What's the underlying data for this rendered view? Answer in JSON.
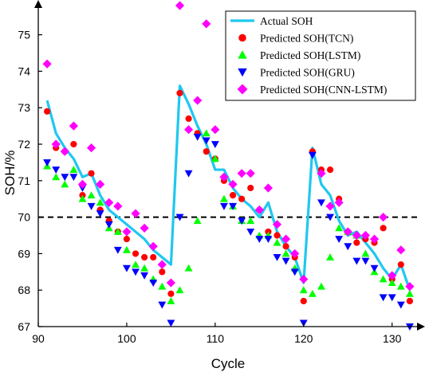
{
  "chart_data": {
    "type": "line",
    "title": "",
    "xlabel": "Cycle",
    "ylabel": "SOH/%",
    "xlim": [
      90,
      133
    ],
    "ylim": [
      67,
      75.8
    ],
    "xticks": [
      90,
      100,
      110,
      120,
      130
    ],
    "yticks": [
      67,
      68,
      69,
      70,
      71,
      72,
      73,
      74,
      75
    ],
    "xtick_labels": [
      "90",
      "100",
      "110",
      "120",
      "130"
    ],
    "ytick_labels": [
      "67",
      "68",
      "69",
      "70",
      "71",
      "72",
      "73",
      "74",
      "75"
    ],
    "legend_position": "top-right",
    "threshold": {
      "y": 70,
      "style": "dashed",
      "color": "#000000"
    },
    "series": [
      {
        "name": "Actual SOH",
        "kind": "line",
        "color": "#1ec8f0",
        "x": [
          91,
          92,
          93,
          94,
          95,
          96,
          97,
          98,
          99,
          100,
          101,
          102,
          103,
          104,
          105,
          106,
          107,
          108,
          109,
          110,
          111,
          112,
          113,
          114,
          115,
          116,
          117,
          118,
          119,
          120,
          121,
          122,
          123,
          124,
          125,
          126,
          127,
          128,
          129,
          130,
          131,
          132
        ],
        "y": [
          73.2,
          72.3,
          71.9,
          71.6,
          71.1,
          71.2,
          70.6,
          70.2,
          70.0,
          69.8,
          69.6,
          69.4,
          69.1,
          68.9,
          68.7,
          73.6,
          73.1,
          72.5,
          72.0,
          71.3,
          71.3,
          70.8,
          70.5,
          70.3,
          70.0,
          70.4,
          69.6,
          69.2,
          68.9,
          68.2,
          71.9,
          70.9,
          70.6,
          69.9,
          69.5,
          69.6,
          69.3,
          69.0,
          68.6,
          68.3,
          68.7,
          68.0
        ]
      },
      {
        "name": "Predicted SOH(TCN)",
        "kind": "scatter",
        "marker": "circle",
        "color": "#ff0000",
        "x": [
          91,
          92,
          93,
          94,
          95,
          96,
          97,
          98,
          99,
          100,
          101,
          102,
          103,
          104,
          105,
          106,
          107,
          108,
          109,
          110,
          111,
          112,
          113,
          114,
          115,
          116,
          117,
          118,
          119,
          120,
          121,
          122,
          123,
          124,
          125,
          126,
          127,
          128,
          129,
          130,
          131,
          132
        ],
        "y": [
          72.9,
          71.9,
          71.8,
          72.0,
          70.6,
          71.2,
          70.2,
          69.9,
          69.6,
          69.4,
          69.0,
          68.9,
          68.9,
          68.5,
          67.9,
          73.4,
          72.7,
          72.3,
          71.8,
          71.6,
          71.0,
          70.6,
          70.5,
          70.8,
          70.2,
          69.6,
          69.5,
          69.2,
          68.9,
          67.7,
          71.8,
          71.3,
          71.3,
          70.5,
          69.6,
          69.3,
          69.4,
          69.3,
          69.7,
          68.3,
          68.7,
          67.7
        ]
      },
      {
        "name": "Predicted SOH(LSTM)",
        "kind": "scatter",
        "marker": "triangle-up",
        "color": "#00ff00",
        "x": [
          91,
          92,
          93,
          94,
          95,
          96,
          97,
          98,
          99,
          100,
          101,
          102,
          103,
          104,
          105,
          106,
          107,
          108,
          109,
          110,
          111,
          112,
          113,
          114,
          115,
          116,
          117,
          118,
          119,
          120,
          121,
          122,
          123,
          124,
          125,
          126,
          127,
          128,
          129,
          130,
          131,
          132
        ],
        "y": [
          71.4,
          71.1,
          70.9,
          71.3,
          70.5,
          70.6,
          70.4,
          69.7,
          69.6,
          69.1,
          68.7,
          68.6,
          68.3,
          68.1,
          67.7,
          68.0,
          68.6,
          69.9,
          72.3,
          71.6,
          70.5,
          70.3,
          69.9,
          69.9,
          69.5,
          69.5,
          69.3,
          69.0,
          68.6,
          68.0,
          67.9,
          68.1,
          68.9,
          69.7,
          69.6,
          69.5,
          69.0,
          68.5,
          68.3,
          68.2,
          68.1,
          67.9
        ]
      },
      {
        "name": "Predicted SOH(GRU)",
        "kind": "scatter",
        "marker": "triangle-down",
        "color": "#0000ff",
        "x": [
          91,
          92,
          93,
          94,
          95,
          96,
          97,
          98,
          99,
          100,
          101,
          102,
          103,
          104,
          105,
          106,
          107,
          108,
          109,
          110,
          111,
          112,
          113,
          114,
          115,
          116,
          117,
          118,
          119,
          120,
          121,
          122,
          123,
          124,
          125,
          126,
          127,
          128,
          129,
          130,
          131,
          132
        ],
        "y": [
          71.5,
          71.3,
          71.1,
          71.1,
          70.8,
          70.3,
          70.1,
          69.8,
          69.1,
          68.6,
          68.5,
          68.4,
          68.2,
          67.6,
          67.1,
          70.0,
          71.2,
          72.2,
          72.1,
          72.0,
          70.3,
          70.3,
          69.9,
          69.6,
          69.4,
          69.4,
          68.9,
          68.8,
          68.5,
          67.1,
          71.7,
          70.4,
          70.0,
          69.4,
          69.2,
          68.8,
          68.8,
          68.6,
          67.8,
          67.8,
          67.6,
          67.0
        ]
      },
      {
        "name": "Predicted SOH(CNN-LSTM)",
        "kind": "scatter",
        "marker": "diamond",
        "color": "#ff00ff",
        "x": [
          91,
          92,
          93,
          94,
          95,
          96,
          97,
          98,
          99,
          100,
          101,
          102,
          103,
          104,
          105,
          106,
          107,
          108,
          109,
          110,
          111,
          112,
          113,
          114,
          115,
          116,
          117,
          118,
          119,
          120,
          121,
          122,
          123,
          124,
          125,
          126,
          127,
          128,
          129,
          130,
          131,
          132
        ],
        "y": [
          74.2,
          72.0,
          71.8,
          72.5,
          70.9,
          71.9,
          70.9,
          70.4,
          70.3,
          69.6,
          70.1,
          69.7,
          69.2,
          68.7,
          68.2,
          75.8,
          72.4,
          73.2,
          75.3,
          72.4,
          71.1,
          70.9,
          71.2,
          71.2,
          70.2,
          70.8,
          69.8,
          69.4,
          69.0,
          68.3,
          73.4,
          71.2,
          70.3,
          70.4,
          69.6,
          69.5,
          69.5,
          69.4,
          70.0,
          68.4,
          69.1,
          68.1
        ]
      }
    ]
  }
}
